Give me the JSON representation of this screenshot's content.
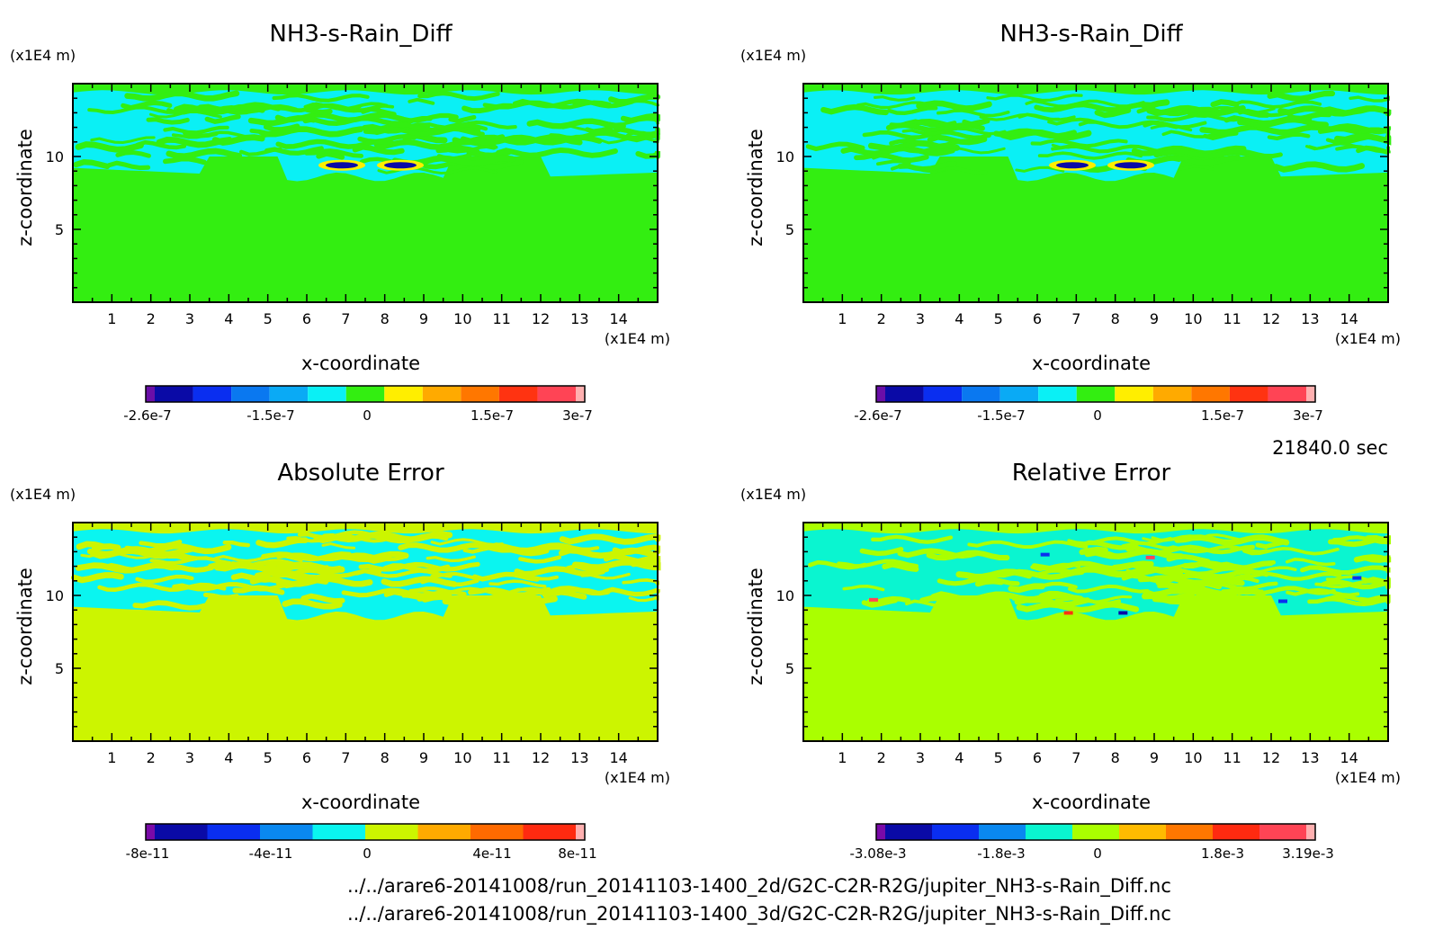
{
  "time_label": "21840.0 sec",
  "file_paths": [
    "../../arare6-20141008/run_20141103-1400_2d/G2C-C2R-R2G/jupiter_NH3-s-Rain_Diff.nc",
    "../../arare6-20141008/run_20141103-1400_3d/G2C-C2R-R2G/jupiter_NH3-s-Rain_Diff.nc"
  ],
  "chart_data": [
    {
      "type": "heatmap",
      "title": "NH3-s-Rain_Diff",
      "xlabel": "x-coordinate",
      "ylabel": "z-coordinate",
      "x_unit": "(x1E4 m)",
      "y_unit": "(x1E4 m)",
      "xlim": [
        0,
        15
      ],
      "ylim": [
        0,
        15
      ],
      "x_ticks": [
        1,
        2,
        3,
        4,
        5,
        6,
        7,
        8,
        9,
        10,
        11,
        12,
        13,
        14
      ],
      "y_ticks": [
        5,
        10
      ],
      "background": "#33ee11",
      "colorbar": {
        "colors": [
          "#6a0ea8",
          "#0a0aa6",
          "#0a2ef0",
          "#0a78f0",
          "#0aaaf5",
          "#0af0f5",
          "#33ee11",
          "#ffee00",
          "#ffaa00",
          "#ff7700",
          "#ff3311",
          "#ff4455",
          "#ffb0b0"
        ],
        "tick_labels": [
          "-2.6e-7",
          "-1.5e-7",
          "0",
          "1.5e-7",
          "3e-7"
        ]
      }
    },
    {
      "type": "heatmap",
      "title": "NH3-s-Rain_Diff",
      "xlabel": "x-coordinate",
      "ylabel": "z-coordinate",
      "x_unit": "(x1E4 m)",
      "y_unit": "(x1E4 m)",
      "xlim": [
        0,
        15
      ],
      "ylim": [
        0,
        15
      ],
      "x_ticks": [
        1,
        2,
        3,
        4,
        5,
        6,
        7,
        8,
        9,
        10,
        11,
        12,
        13,
        14
      ],
      "y_ticks": [
        5,
        10
      ],
      "background": "#33ee11",
      "colorbar": {
        "colors": [
          "#6a0ea8",
          "#0a0aa6",
          "#0a2ef0",
          "#0a78f0",
          "#0aaaf5",
          "#0af0f5",
          "#33ee11",
          "#ffee00",
          "#ffaa00",
          "#ff7700",
          "#ff3311",
          "#ff4455",
          "#ffb0b0"
        ],
        "tick_labels": [
          "-2.6e-7",
          "-1.5e-7",
          "0",
          "1.5e-7",
          "3e-7"
        ]
      }
    },
    {
      "type": "heatmap",
      "title": "Absolute Error",
      "xlabel": "x-coordinate",
      "ylabel": "z-coordinate",
      "x_unit": "(x1E4 m)",
      "y_unit": "(x1E4 m)",
      "xlim": [
        0,
        15
      ],
      "ylim": [
        0,
        15
      ],
      "x_ticks": [
        1,
        2,
        3,
        4,
        5,
        6,
        7,
        8,
        9,
        10,
        11,
        12,
        13,
        14
      ],
      "y_ticks": [
        5,
        10
      ],
      "background": "#ccf500",
      "colorbar": {
        "colors": [
          "#7a0aa8",
          "#0a0aa6",
          "#0a2ef0",
          "#0a88f0",
          "#0af5f0",
          "#ccf500",
          "#ffaa00",
          "#ff6a00",
          "#ff2a10",
          "#ffb0b0"
        ],
        "tick_labels": [
          "-8e-11",
          "-4e-11",
          "0",
          "4e-11",
          "8e-11"
        ]
      }
    },
    {
      "type": "heatmap",
      "title": "Relative Error",
      "xlabel": "x-coordinate",
      "ylabel": "z-coordinate",
      "x_unit": "(x1E4 m)",
      "y_unit": "(x1E4 m)",
      "xlim": [
        0,
        15
      ],
      "ylim": [
        0,
        15
      ],
      "x_ticks": [
        1,
        2,
        3,
        4,
        5,
        6,
        7,
        8,
        9,
        10,
        11,
        12,
        13,
        14
      ],
      "y_ticks": [
        5,
        10
      ],
      "background": "#aaff00",
      "colorbar": {
        "colors": [
          "#7a0aa8",
          "#0a0aa6",
          "#0a2ef0",
          "#0a88f0",
          "#0af5d0",
          "#aaff00",
          "#ffbb00",
          "#ff7700",
          "#ff2a10",
          "#ff4455",
          "#ffb0b0"
        ],
        "tick_labels": [
          "-3.08e-3",
          "-1.8e-3",
          "0",
          "1.8e-3",
          "3.19e-3"
        ]
      }
    }
  ]
}
